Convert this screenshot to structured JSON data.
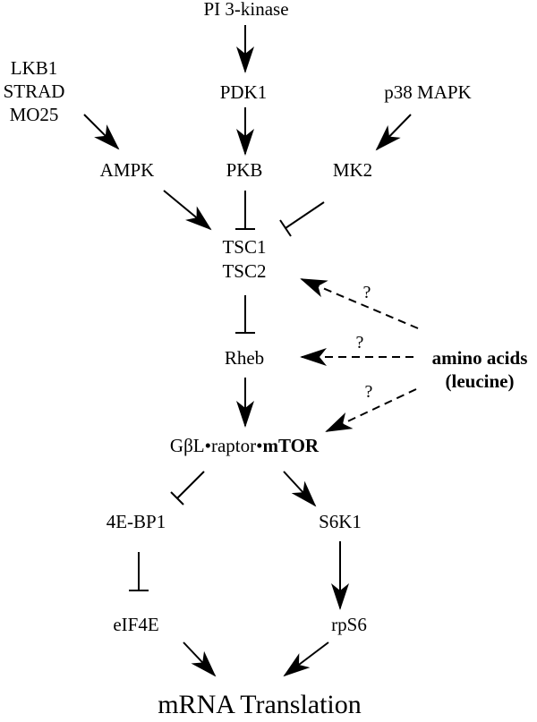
{
  "nodes": {
    "pi3k": "PI 3-kinase",
    "lkb1": "LKB1",
    "strad": "STRAD",
    "mo25": "MO25",
    "pdk1": "PDK1",
    "p38": "p38 MAPK",
    "ampk": "AMPK",
    "pkb": "PKB",
    "mk2": "MK2",
    "tsc1": "TSC1",
    "tsc2": "TSC2",
    "rheb": "Rheb",
    "aa_line1": "amino acids",
    "aa_line2": "(leucine)",
    "mtor_prefix": "GβL•raptor•",
    "mtor_bold": "mTOR",
    "bp1": "4E-BP1",
    "s6k1": "S6K1",
    "eif4e": "eIF4E",
    "rps6": "rpS6",
    "translation": "mRNA Translation"
  },
  "question_marks": [
    "?",
    "?",
    "?"
  ],
  "edges": [
    {
      "from": "pi3k",
      "to": "pdk1",
      "type": "activation"
    },
    {
      "from": "pdk1",
      "to": "pkb",
      "type": "activation"
    },
    {
      "from": "lkb1",
      "to": "ampk",
      "type": "activation"
    },
    {
      "from": "p38",
      "to": "mk2",
      "type": "activation"
    },
    {
      "from": "ampk",
      "to": "tsc1",
      "type": "activation"
    },
    {
      "from": "pkb",
      "to": "tsc1",
      "type": "inhibition"
    },
    {
      "from": "mk2",
      "to": "tsc1",
      "type": "inhibition"
    },
    {
      "from": "tsc2",
      "to": "rheb",
      "type": "inhibition"
    },
    {
      "from": "rheb",
      "to": "mtor",
      "type": "activation"
    },
    {
      "from": "amino_acids",
      "to": "tsc2",
      "type": "uncertain"
    },
    {
      "from": "amino_acids",
      "to": "rheb",
      "type": "uncertain"
    },
    {
      "from": "amino_acids",
      "to": "mtor",
      "type": "uncertain"
    },
    {
      "from": "mtor",
      "to": "bp1",
      "type": "inhibition"
    },
    {
      "from": "mtor",
      "to": "s6k1",
      "type": "activation"
    },
    {
      "from": "bp1",
      "to": "eif4e",
      "type": "inhibition"
    },
    {
      "from": "s6k1",
      "to": "rps6",
      "type": "activation"
    },
    {
      "from": "eif4e",
      "to": "translation",
      "type": "activation"
    },
    {
      "from": "rps6",
      "to": "translation",
      "type": "activation"
    }
  ]
}
